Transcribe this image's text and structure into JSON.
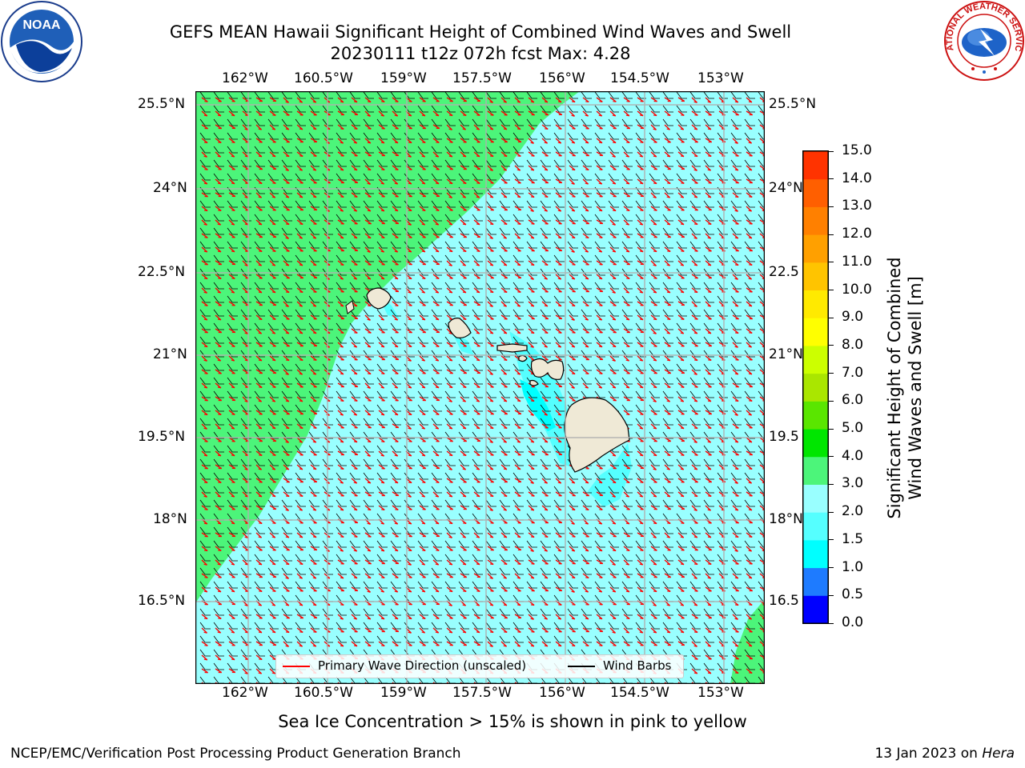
{
  "title": {
    "line1": "GEFS MEAN Hawaii Significant Height of Combined Wind Waves and Swell",
    "line2": "20230111 t12z 072h fcst   Max: 4.28"
  },
  "logos": {
    "noaa_text": "NOAA",
    "nws_text": "NATIONAL WEATHER SERVICE"
  },
  "map": {
    "lon_labels": [
      "162°W",
      "160.5°W",
      "159°W",
      "157.5°W",
      "156°W",
      "154.5°W",
      "153°W"
    ],
    "lat_labels": [
      "25.5°N",
      "24°N",
      "22.5°N",
      "21°N",
      "19.5°N",
      "18°N",
      "16.5°N"
    ],
    "lat_labels_right": [
      "25.5°N",
      "24°N",
      "22.5",
      "21°N",
      "19.5",
      "18°N",
      "16.5"
    ],
    "legend": {
      "wave_label": "Primary Wave Direction (unscaled)",
      "barb_label": "Wind Barbs",
      "wave_color": "#ff0000",
      "barb_color": "#000000"
    }
  },
  "colorbar": {
    "title_line1": "Significant Height of Combined",
    "title_line2": "Wind Waves and Swell [m]",
    "ticks": [
      "0.0",
      "0.5",
      "1.0",
      "1.5",
      "2.0",
      "3.0",
      "4.0",
      "5.0",
      "6.0",
      "7.0",
      "8.0",
      "9.0",
      "10.0",
      "11.0",
      "12.0",
      "13.0",
      "14.0",
      "15.0"
    ],
    "colors": [
      "#0000ff",
      "#1e7bff",
      "#00ffff",
      "#55ffff",
      "#99ffff",
      "#4cf57a",
      "#00e600",
      "#5ae600",
      "#aae600",
      "#ccff00",
      "#ffff00",
      "#ffea00",
      "#ffc400",
      "#ffa000",
      "#ff8000",
      "#ff5f00",
      "#ff3300",
      "#ff0000"
    ]
  },
  "note": "Sea Ice Concentration > 15% is shown in pink to yellow",
  "footer": {
    "left": "NCEP/EMC/Verification Post Processing Product Generation Branch",
    "right_prefix": "13 Jan 2023 on ",
    "right_host": "Hera"
  }
}
